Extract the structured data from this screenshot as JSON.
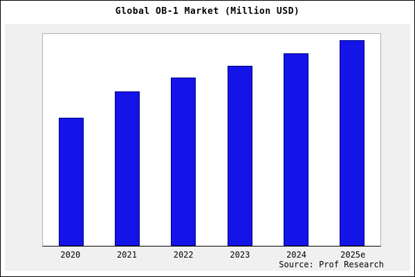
{
  "chart_data": {
    "type": "bar",
    "title": "Global OB-1 Market (Million USD)",
    "categories": [
      "2020",
      "2021",
      "2022",
      "2023",
      "2024",
      "2025e"
    ],
    "values": [
      100,
      120,
      131,
      140,
      150,
      160
    ],
    "ylim": [
      0,
      165
    ],
    "xlabel": "",
    "ylabel": "",
    "grid": false,
    "legend": false,
    "bar_fill": "#1414E8",
    "bar_border": "#000080",
    "plot_bg": "#ffffff",
    "outer_bg": "#f0f0f0",
    "source": "Source: Prof Research"
  }
}
